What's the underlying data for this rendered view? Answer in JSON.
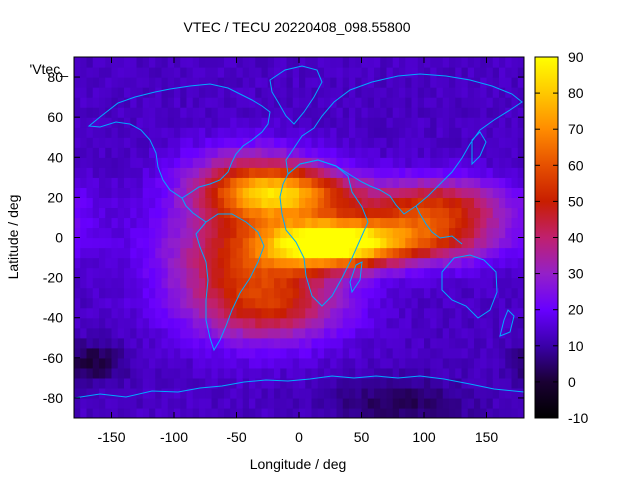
{
  "chart_data": {
    "type": "heatmap",
    "title": "VTEC / TECU 20220408_098.55800",
    "xlabel": "Longitude / deg",
    "ylabel": "Latitude / deg",
    "series_label": "'Vtec_",
    "xlim": [
      -180,
      180
    ],
    "ylim": [
      -90,
      90
    ],
    "x_ticks": [
      -150,
      -100,
      -50,
      0,
      50,
      100,
      150
    ],
    "y_ticks": [
      -80,
      -60,
      -40,
      -20,
      0,
      20,
      40,
      60,
      80
    ],
    "colorbar": {
      "range": [
        -10,
        90
      ],
      "ticks": [
        -10,
        0,
        10,
        20,
        30,
        40,
        50,
        60,
        70,
        80,
        90
      ]
    },
    "grid_step_deg": 5,
    "background_vtec": 13,
    "vtec_features": [
      {
        "name": "equatorial-crest-africa",
        "lon": 25,
        "lat": -3,
        "sigma_lon": 35,
        "sigma_lat": 8,
        "amplitude": 72
      },
      {
        "name": "northern-crest-atlantic",
        "lon": -15,
        "lat": 22,
        "sigma_lon": 40,
        "sigma_lat": 9,
        "amplitude": 55
      },
      {
        "name": "south-america-atlantic-core",
        "lon": -40,
        "lat": -10,
        "sigma_lon": 45,
        "sigma_lat": 22,
        "amplitude": 38
      },
      {
        "name": "asia-equatorial-band",
        "lon": 95,
        "lat": 0,
        "sigma_lon": 45,
        "sigma_lat": 9,
        "amplitude": 38
      },
      {
        "name": "asia-northern-band",
        "lon": 110,
        "lat": 17,
        "sigma_lon": 40,
        "sigma_lat": 9,
        "amplitude": 35
      },
      {
        "name": "southern-atlantic-extension",
        "lon": -20,
        "lat": -35,
        "sigma_lon": 40,
        "sigma_lat": 12,
        "amplitude": 22
      },
      {
        "name": "north-atlantic-extension",
        "lon": -40,
        "lat": 35,
        "sigma_lon": 35,
        "sigma_lat": 10,
        "amplitude": 15
      },
      {
        "name": "southern-pacific-depletion",
        "lon": -165,
        "lat": -62,
        "sigma_lon": 18,
        "sigma_lat": 7,
        "amplitude": -12
      },
      {
        "name": "antarctic-depletion",
        "lon": 80,
        "lat": -82,
        "sigma_lon": 40,
        "sigma_lat": 8,
        "amplitude": -10
      }
    ],
    "colors": {
      "palette": [
        "#000000",
        "#1a0033",
        "#3a00a8",
        "#6800ff",
        "#9420c8",
        "#c0206e",
        "#c81e00",
        "#e65000",
        "#ff8c00",
        "#ffc800",
        "#ffff00"
      ],
      "coastline": "#00aaff",
      "frame": "#000000"
    }
  }
}
